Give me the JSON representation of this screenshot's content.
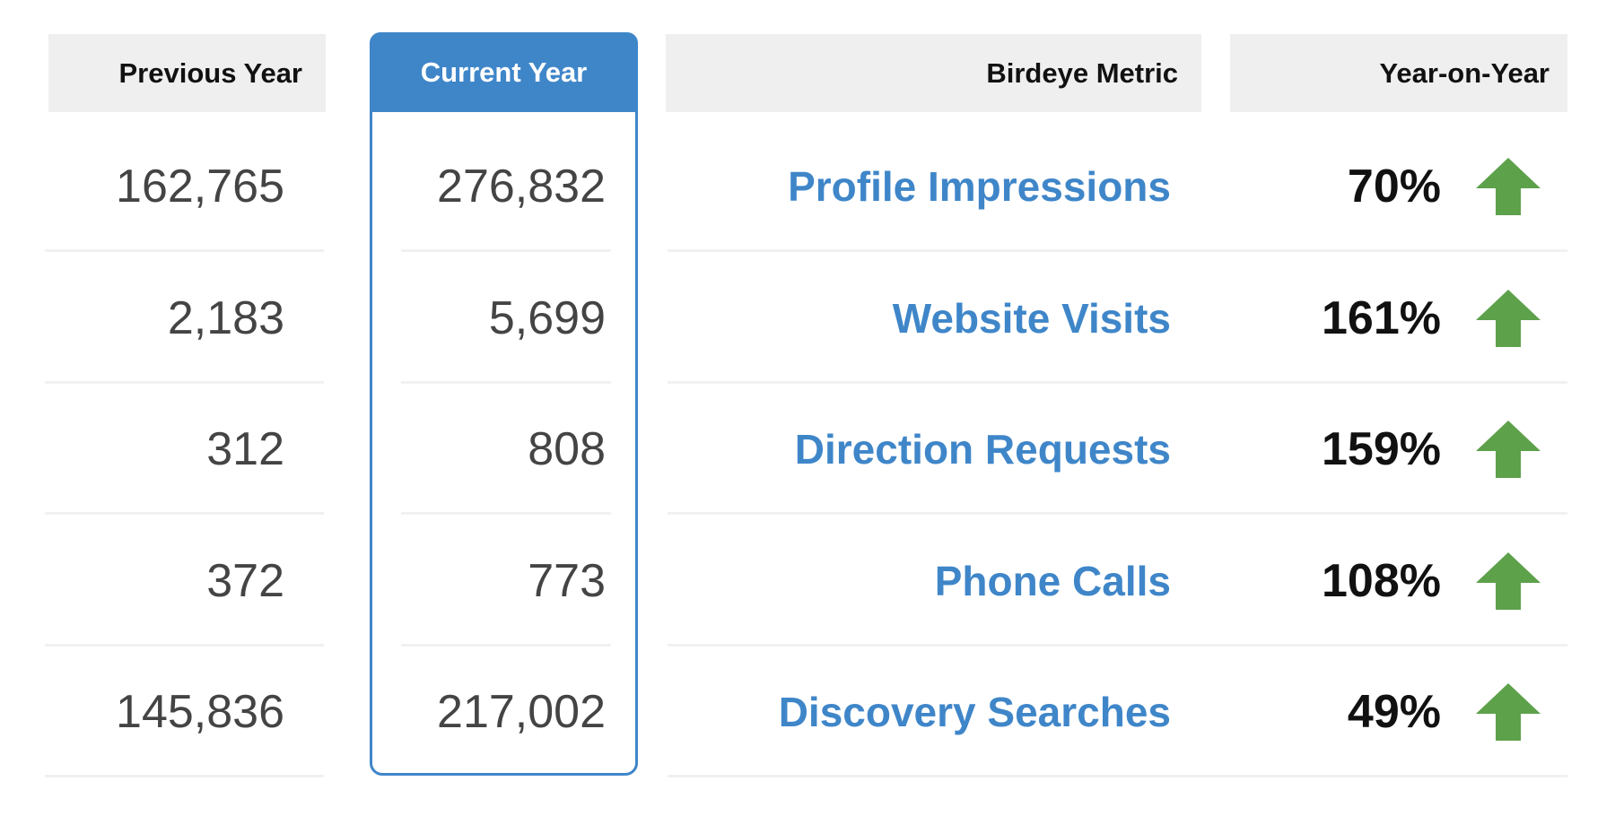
{
  "table": {
    "headers": [
      "Previous Year",
      "Current Year",
      "Birdeye Metric",
      "Year-on-Year"
    ],
    "rows": [
      [
        "162,765",
        "276,832",
        "Profile Impressions",
        "70%"
      ],
      [
        "2,183",
        "5,699",
        "Website Visits",
        "161%"
      ],
      [
        "312",
        "808",
        "Direction Requests",
        "159%"
      ],
      [
        "372",
        "773",
        "Phone Calls",
        "108%"
      ],
      [
        "145,836",
        "217,002",
        "Discovery Searches",
        "49%"
      ]
    ]
  }
}
